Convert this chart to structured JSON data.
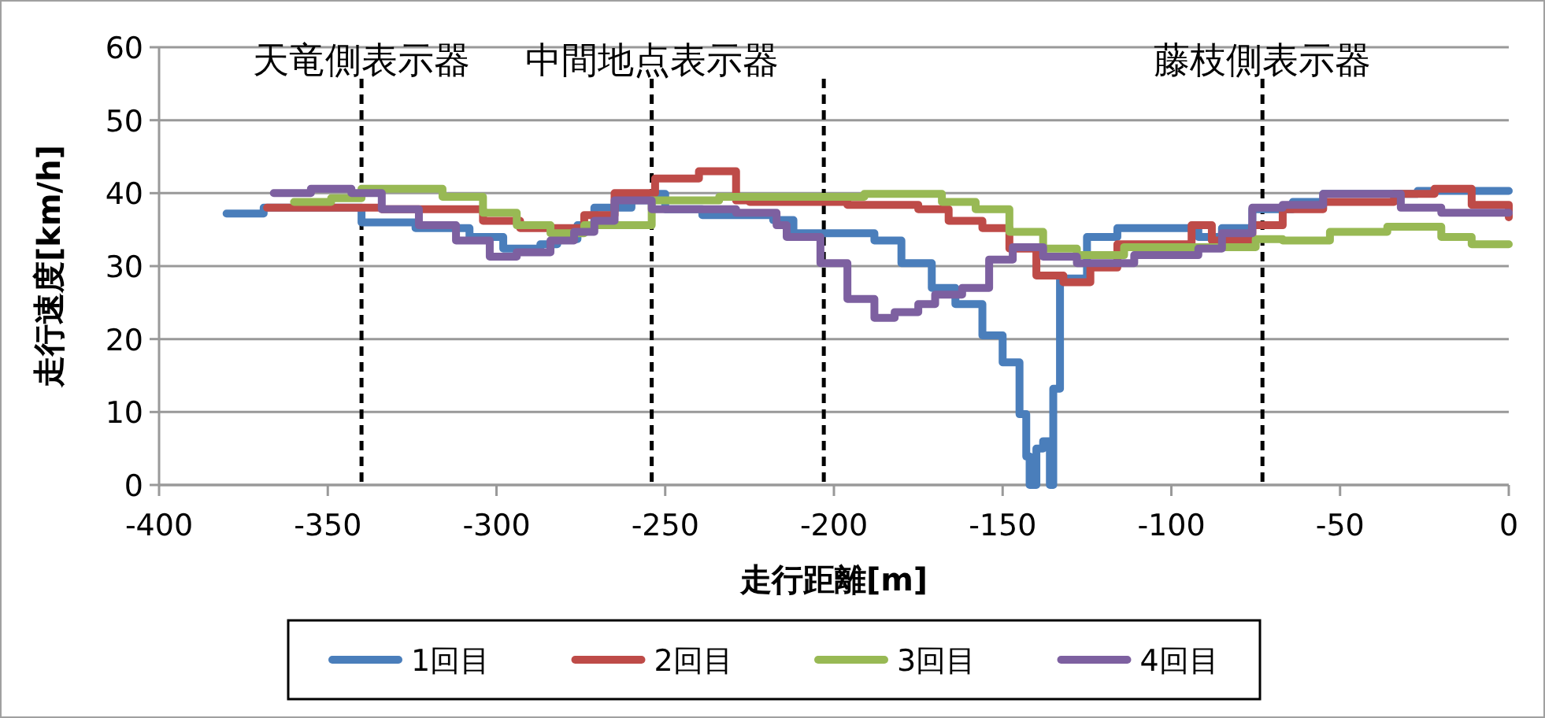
{
  "chart_data": {
    "type": "step",
    "xlabel": "走行距離[m]",
    "ylabel": "走行速度[km/h]",
    "xlim": [
      -400,
      0
    ],
    "xticks": [
      -400,
      -350,
      -300,
      -250,
      -200,
      -150,
      -100,
      -50,
      0
    ],
    "ylim": [
      0,
      60
    ],
    "yticks": [
      0,
      10,
      20,
      30,
      40,
      50,
      60
    ],
    "grid": "y",
    "legend": "bottom",
    "ref_lines": [
      {
        "axis": "x",
        "value": -340,
        "label": "天竜側表示器",
        "color": "#000000",
        "line_style": "dashed"
      },
      {
        "axis": "x",
        "value": -254,
        "label": "中間地点表示器",
        "color": "#000000",
        "line_style": "dashed"
      },
      {
        "axis": "x",
        "value": -203,
        "color": "#000000",
        "line_style": "dashed"
      },
      {
        "axis": "x",
        "value": -73,
        "label": "藤枝側表示器",
        "color": "#000000",
        "line_style": "dashed"
      }
    ],
    "series": [
      {
        "name": "1回目",
        "color": "#4a7ebb",
        "x": [
          -380,
          -369,
          -340,
          -324,
          -308,
          -298,
          -287,
          -282,
          -276,
          -271,
          -260,
          -254,
          -250,
          -239,
          -218,
          -212,
          -188,
          -180,
          -171,
          -164,
          -156,
          -150,
          -145,
          -143,
          -142,
          -140,
          -138,
          -136,
          -135,
          -133,
          -125,
          -116,
          -92,
          -85,
          -76,
          -64,
          -55,
          -27,
          0
        ],
        "values": [
          37.2,
          38,
          36,
          35.2,
          34,
          32.4,
          33,
          33.7,
          35.6,
          38,
          39,
          39.9,
          37.8,
          37,
          36.3,
          34.5,
          33.5,
          30.4,
          27,
          24.8,
          20.5,
          16.8,
          9.7,
          3.9,
          0,
          5,
          6,
          0,
          13.2,
          28.3,
          34,
          35.2,
          34,
          35.2,
          37.8,
          38.8,
          39.9,
          40.3,
          40.3
        ]
      },
      {
        "name": "2回目",
        "color": "#be4b48",
        "x": [
          -368,
          -334,
          -304,
          -293,
          -274,
          -265,
          -253,
          -240,
          -229,
          -225,
          -196,
          -175,
          -166,
          -156,
          -148,
          -140,
          -132,
          -124,
          -116,
          -94,
          -88,
          -76,
          -67,
          -55,
          -34,
          -22,
          -11,
          0
        ],
        "values": [
          38,
          37.8,
          36.2,
          35.2,
          37,
          40,
          42,
          43,
          39,
          38.8,
          38.4,
          37.8,
          36.2,
          35.2,
          32.4,
          28.7,
          27.8,
          29.8,
          33,
          35.6,
          33.5,
          35.6,
          37.8,
          38.8,
          39.9,
          40.6,
          38.4,
          36.7
        ]
      },
      {
        "name": "3回目",
        "color": "#98b954",
        "x": [
          -360,
          -349,
          -340,
          -316,
          -304,
          -294,
          -284,
          -274,
          -254,
          -234,
          -191,
          -168,
          -158,
          -148,
          -138,
          -128,
          -114,
          -75,
          -67,
          -53,
          -36,
          -20,
          -11,
          0
        ],
        "values": [
          38.8,
          39.3,
          40.6,
          39.5,
          37.3,
          35.6,
          34.5,
          35.6,
          39,
          39.5,
          39.9,
          38.8,
          37.8,
          34.7,
          32.4,
          31.5,
          32.6,
          33.7,
          33.5,
          34.7,
          35.4,
          34,
          33,
          33
        ]
      },
      {
        "name": "4回目",
        "color": "#7d60a0",
        "x": [
          -366,
          -355,
          -343,
          -334,
          -323,
          -312,
          -302,
          -294,
          -284,
          -277,
          -271,
          -265,
          -254,
          -229,
          -217,
          -214,
          -204,
          -196,
          -188,
          -182,
          -175,
          -170,
          -162,
          -154,
          -147,
          -138,
          -128,
          -111,
          -92,
          -85,
          -76,
          -67,
          -55,
          -32,
          -20,
          0
        ],
        "values": [
          40,
          40.6,
          40,
          37.8,
          35.6,
          33.5,
          31.3,
          31.9,
          33.5,
          34.7,
          36.2,
          39,
          37.8,
          37.3,
          35.6,
          34,
          30.4,
          25.5,
          22.9,
          23.7,
          24.8,
          26.1,
          27,
          30.9,
          32.6,
          31.3,
          30.4,
          31.5,
          32.4,
          34.5,
          38,
          38.4,
          39.9,
          38,
          37.3,
          37.3
        ]
      }
    ]
  }
}
